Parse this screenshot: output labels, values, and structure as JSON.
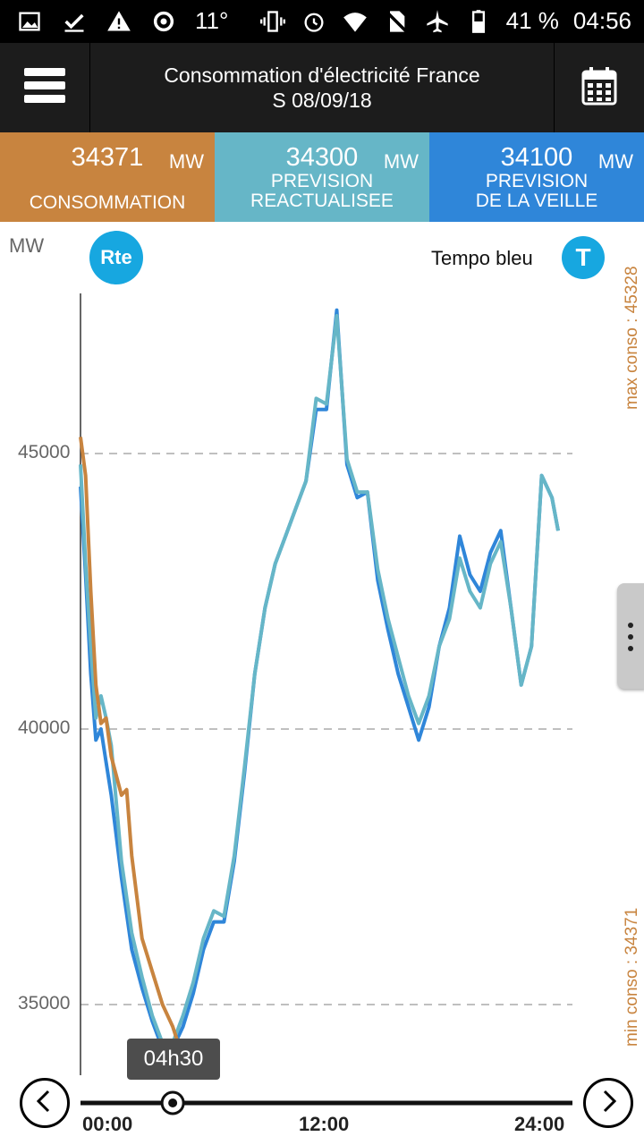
{
  "status_bar": {
    "temperature": "11°",
    "battery": "41 %",
    "time": "04:56",
    "icons_left": [
      "image-icon",
      "check-download-icon",
      "warning-icon",
      "weather-icon"
    ],
    "icons_right": [
      "vibrate-icon",
      "alarm-icon",
      "wifi-icon",
      "no-sim-icon",
      "airplane-icon",
      "battery-icon"
    ]
  },
  "app_bar": {
    "title_line1": "Consommation d'électricité France",
    "title_line2": "S 08/09/18",
    "menu_icon": "hamburger-menu-icon",
    "calendar_icon": "calendar-icon"
  },
  "tiles": [
    {
      "value": "34371",
      "unit": "MW",
      "label_line1": "CONSOMMATION",
      "label_line2": "",
      "color": "#c8843f"
    },
    {
      "value": "34300",
      "unit": "MW",
      "label_line1": "PREVISION",
      "label_line2": "REACTUALISEE",
      "color": "#66b6c7"
    },
    {
      "value": "34100",
      "unit": "MW",
      "label_line1": "PREVISION",
      "label_line2": "DE LA VEILLE",
      "color": "#2f86d9"
    }
  ],
  "chart_header": {
    "unit_label": "MW",
    "rte_logo_text": "Rte",
    "tempo_label": "Tempo bleu",
    "tempo_badge": "T",
    "max_label": "max conso : 45328",
    "min_label": "min conso : 34371"
  },
  "chart_data": {
    "type": "line",
    "ylabel": "MW",
    "ylim": [
      32500,
      48500
    ],
    "yticks": [
      35000,
      40000,
      45000
    ],
    "xticks": [
      "00:00",
      "12:00",
      "24:00"
    ],
    "x_hours_range": [
      0,
      24
    ],
    "grid": true,
    "series": [
      {
        "color": "#2f86d9",
        "points": [
          [
            0,
            44400
          ],
          [
            0.25,
            42800
          ],
          [
            0.5,
            41000
          ],
          [
            0.75,
            39800
          ],
          [
            1,
            40000
          ],
          [
            1.25,
            39400
          ],
          [
            1.5,
            38800
          ],
          [
            2,
            37300
          ],
          [
            2.5,
            36000
          ],
          [
            3,
            35300
          ],
          [
            3.5,
            34700
          ],
          [
            4,
            34200
          ],
          [
            4.5,
            34200
          ],
          [
            5,
            34600
          ],
          [
            5.5,
            35200
          ],
          [
            6,
            36000
          ],
          [
            6.5,
            36500
          ],
          [
            7,
            36500
          ],
          [
            7.5,
            37600
          ],
          [
            8,
            39200
          ],
          [
            8.5,
            41000
          ],
          [
            9,
            42200
          ],
          [
            9.5,
            43000
          ],
          [
            10,
            43500
          ],
          [
            10.5,
            44000
          ],
          [
            11,
            44500
          ],
          [
            11.5,
            45800
          ],
          [
            12,
            45800
          ],
          [
            12.5,
            47600
          ],
          [
            13,
            44800
          ],
          [
            13.5,
            44200
          ],
          [
            14,
            44300
          ],
          [
            14.5,
            42700
          ],
          [
            15,
            41800
          ],
          [
            15.5,
            41000
          ],
          [
            16,
            40400
          ],
          [
            16.5,
            39800
          ],
          [
            17,
            40400
          ],
          [
            17.5,
            41500
          ],
          [
            18,
            42200
          ],
          [
            18.5,
            43500
          ],
          [
            19,
            42800
          ],
          [
            19.5,
            42500
          ],
          [
            20,
            43200
          ],
          [
            20.5,
            43600
          ],
          [
            21,
            42200
          ],
          [
            21.5,
            40800
          ],
          [
            22,
            41500
          ],
          [
            22.5,
            44600
          ],
          [
            23,
            44200
          ],
          [
            23.3,
            43600
          ]
        ]
      },
      {
        "color": "#66b6c7",
        "points": [
          [
            0,
            44800
          ],
          [
            0.25,
            43000
          ],
          [
            0.5,
            41500
          ],
          [
            0.75,
            40200
          ],
          [
            1,
            40600
          ],
          [
            1.25,
            40200
          ],
          [
            1.5,
            39700
          ],
          [
            2,
            37600
          ],
          [
            2.5,
            36300
          ],
          [
            3,
            35500
          ],
          [
            3.5,
            34800
          ],
          [
            4,
            34300
          ],
          [
            4.5,
            34300
          ],
          [
            5,
            34800
          ],
          [
            5.5,
            35400
          ],
          [
            6,
            36200
          ],
          [
            6.5,
            36700
          ],
          [
            7,
            36600
          ],
          [
            7.5,
            37700
          ],
          [
            8,
            39300
          ],
          [
            8.5,
            41000
          ],
          [
            9,
            42200
          ],
          [
            9.5,
            43000
          ],
          [
            10,
            43500
          ],
          [
            10.5,
            44000
          ],
          [
            11,
            44500
          ],
          [
            11.5,
            46000
          ],
          [
            12,
            45900
          ],
          [
            12.5,
            47500
          ],
          [
            13,
            44900
          ],
          [
            13.5,
            44300
          ],
          [
            14,
            44300
          ],
          [
            14.5,
            42900
          ],
          [
            15,
            42000
          ],
          [
            15.5,
            41300
          ],
          [
            16,
            40600
          ],
          [
            16.5,
            40100
          ],
          [
            17,
            40600
          ],
          [
            17.5,
            41500
          ],
          [
            18,
            42000
          ],
          [
            18.5,
            43100
          ],
          [
            19,
            42500
          ],
          [
            19.5,
            42200
          ],
          [
            20,
            43000
          ],
          [
            20.5,
            43400
          ],
          [
            21,
            42200
          ],
          [
            21.5,
            40800
          ],
          [
            22,
            41500
          ],
          [
            22.5,
            44600
          ],
          [
            23,
            44200
          ],
          [
            23.3,
            43600
          ]
        ]
      },
      {
        "color": "#c8843f",
        "points": [
          [
            0,
            45300
          ],
          [
            0.25,
            44600
          ],
          [
            0.5,
            42500
          ],
          [
            0.75,
            40800
          ],
          [
            1,
            40100
          ],
          [
            1.25,
            40200
          ],
          [
            1.5,
            39500
          ],
          [
            2,
            38800
          ],
          [
            2.25,
            38900
          ],
          [
            2.5,
            37700
          ],
          [
            3,
            36200
          ],
          [
            3.5,
            35600
          ],
          [
            4,
            35000
          ],
          [
            4.5,
            34600
          ],
          [
            4.7,
            34371
          ]
        ]
      }
    ]
  },
  "slider": {
    "current_label": "04h30",
    "current_hour": 4.5
  },
  "nav": {
    "prev_icon": "chevron-left-icon",
    "next_icon": "chevron-right-icon"
  },
  "side_handle_icon": "more-vertical-icon"
}
